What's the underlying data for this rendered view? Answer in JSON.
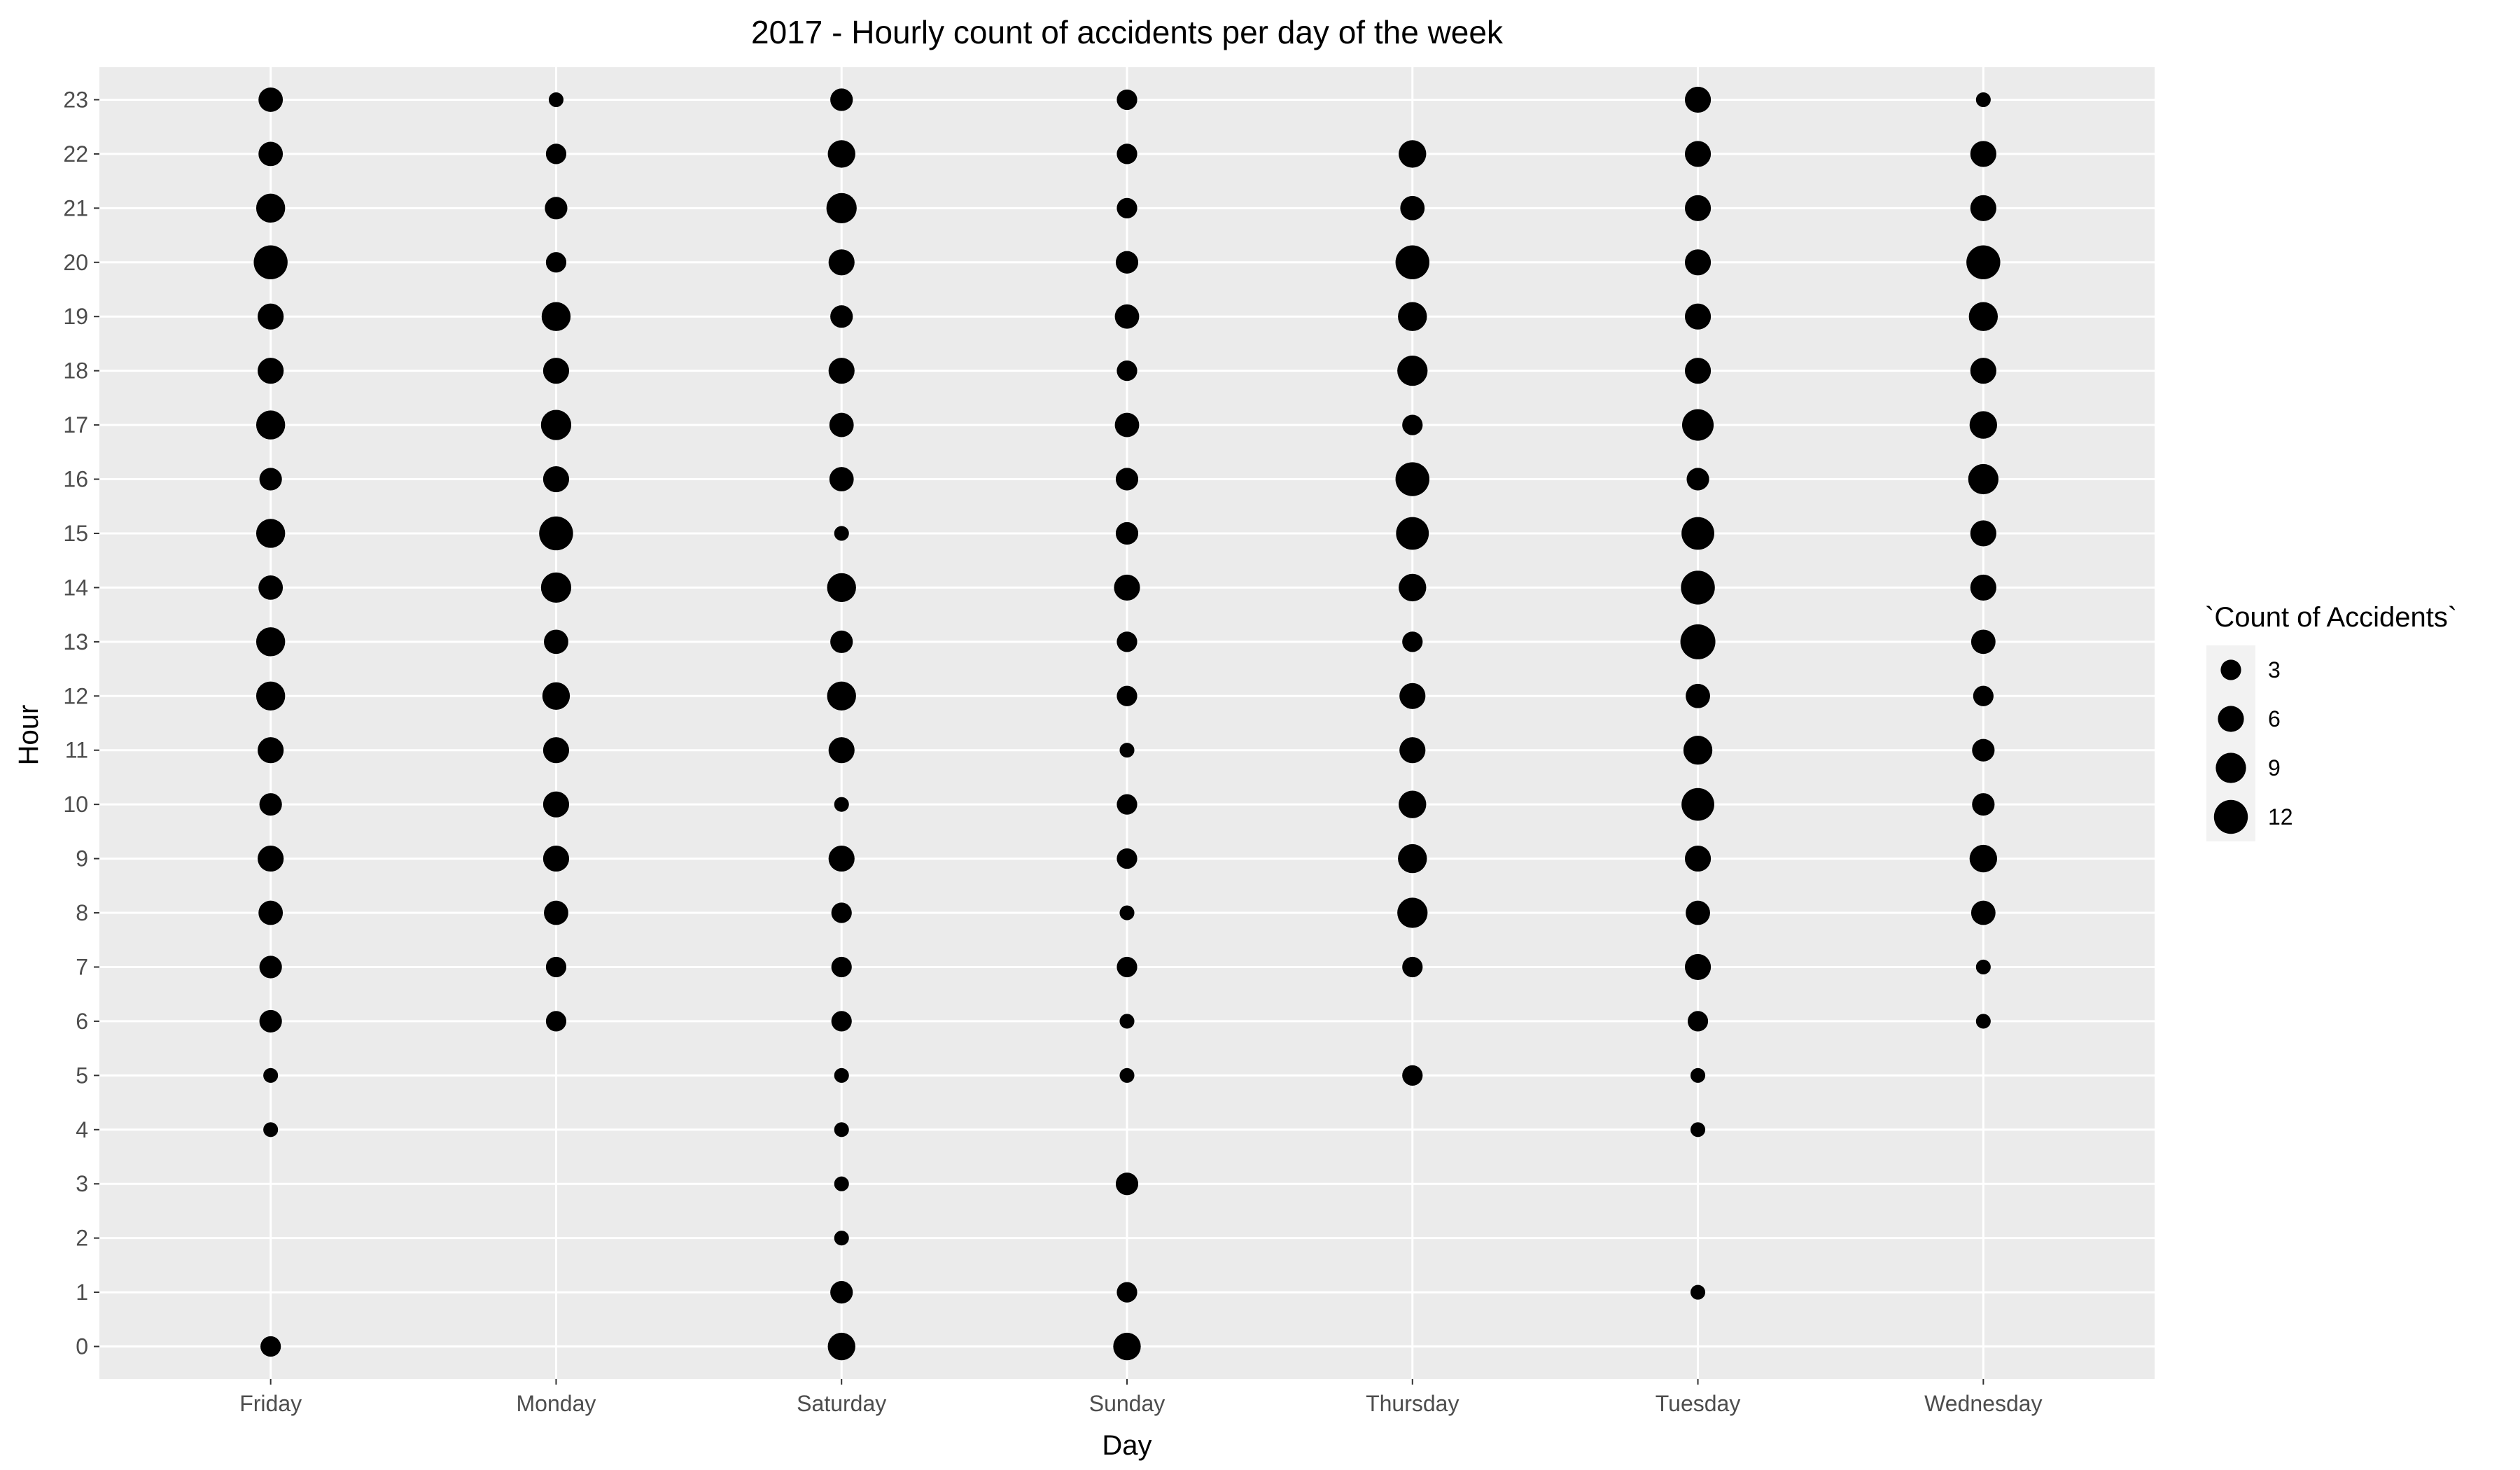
{
  "chart_data": {
    "type": "scatter",
    "title": "2017 - Hourly count of accidents per day of the week",
    "xlabel": "Day",
    "ylabel": "Hour",
    "categories": [
      "Friday",
      "Monday",
      "Saturday",
      "Sunday",
      "Thursday",
      "Tuesday",
      "Wednesday"
    ],
    "y_ticks": [
      0,
      1,
      2,
      3,
      4,
      5,
      6,
      7,
      8,
      9,
      10,
      11,
      12,
      13,
      14,
      15,
      16,
      17,
      18,
      19,
      20,
      21,
      22,
      23
    ],
    "ylim": [
      0,
      23
    ],
    "size_legend": {
      "title": "`Count of Accidents`",
      "values": [
        3,
        6,
        9,
        12
      ],
      "placement": "right"
    },
    "colors": {
      "panel": "#ebebeb",
      "grid": "#ffffff",
      "point": "#000000",
      "legend_key": "#f2f2f2"
    },
    "grid": true,
    "points": [
      {
        "day": "Friday",
        "hour": 0,
        "count": 3
      },
      {
        "day": "Friday",
        "hour": 4,
        "count": 1
      },
      {
        "day": "Friday",
        "hour": 5,
        "count": 1
      },
      {
        "day": "Friday",
        "hour": 6,
        "count": 4
      },
      {
        "day": "Friday",
        "hour": 7,
        "count": 4
      },
      {
        "day": "Friday",
        "hour": 8,
        "count": 5
      },
      {
        "day": "Friday",
        "hour": 9,
        "count": 6
      },
      {
        "day": "Friday",
        "hour": 10,
        "count": 4
      },
      {
        "day": "Friday",
        "hour": 11,
        "count": 6
      },
      {
        "day": "Friday",
        "hour": 12,
        "count": 8
      },
      {
        "day": "Friday",
        "hour": 13,
        "count": 8
      },
      {
        "day": "Friday",
        "hour": 14,
        "count": 5
      },
      {
        "day": "Friday",
        "hour": 15,
        "count": 8
      },
      {
        "day": "Friday",
        "hour": 16,
        "count": 4
      },
      {
        "day": "Friday",
        "hour": 17,
        "count": 8
      },
      {
        "day": "Friday",
        "hour": 18,
        "count": 6
      },
      {
        "day": "Friday",
        "hour": 19,
        "count": 6
      },
      {
        "day": "Friday",
        "hour": 20,
        "count": 12
      },
      {
        "day": "Friday",
        "hour": 21,
        "count": 8
      },
      {
        "day": "Friday",
        "hour": 22,
        "count": 5
      },
      {
        "day": "Friday",
        "hour": 23,
        "count": 5
      },
      {
        "day": "Monday",
        "hour": 6,
        "count": 3
      },
      {
        "day": "Monday",
        "hour": 7,
        "count": 3
      },
      {
        "day": "Monday",
        "hour": 8,
        "count": 5
      },
      {
        "day": "Monday",
        "hour": 9,
        "count": 6
      },
      {
        "day": "Monday",
        "hour": 10,
        "count": 6
      },
      {
        "day": "Monday",
        "hour": 11,
        "count": 6
      },
      {
        "day": "Monday",
        "hour": 12,
        "count": 7
      },
      {
        "day": "Monday",
        "hour": 13,
        "count": 5
      },
      {
        "day": "Monday",
        "hour": 14,
        "count": 9
      },
      {
        "day": "Monday",
        "hour": 15,
        "count": 12
      },
      {
        "day": "Monday",
        "hour": 16,
        "count": 6
      },
      {
        "day": "Monday",
        "hour": 17,
        "count": 9
      },
      {
        "day": "Monday",
        "hour": 18,
        "count": 6
      },
      {
        "day": "Monday",
        "hour": 19,
        "count": 8
      },
      {
        "day": "Monday",
        "hour": 20,
        "count": 3
      },
      {
        "day": "Monday",
        "hour": 21,
        "count": 4
      },
      {
        "day": "Monday",
        "hour": 22,
        "count": 3
      },
      {
        "day": "Monday",
        "hour": 23,
        "count": 1
      },
      {
        "day": "Saturday",
        "hour": 0,
        "count": 7
      },
      {
        "day": "Saturday",
        "hour": 1,
        "count": 4
      },
      {
        "day": "Saturday",
        "hour": 2,
        "count": 1
      },
      {
        "day": "Saturday",
        "hour": 3,
        "count": 1
      },
      {
        "day": "Saturday",
        "hour": 4,
        "count": 1
      },
      {
        "day": "Saturday",
        "hour": 5,
        "count": 1
      },
      {
        "day": "Saturday",
        "hour": 6,
        "count": 3
      },
      {
        "day": "Saturday",
        "hour": 7,
        "count": 3
      },
      {
        "day": "Saturday",
        "hour": 8,
        "count": 3
      },
      {
        "day": "Saturday",
        "hour": 9,
        "count": 6
      },
      {
        "day": "Saturday",
        "hour": 10,
        "count": 1
      },
      {
        "day": "Saturday",
        "hour": 11,
        "count": 6
      },
      {
        "day": "Saturday",
        "hour": 12,
        "count": 8
      },
      {
        "day": "Saturday",
        "hour": 13,
        "count": 4
      },
      {
        "day": "Saturday",
        "hour": 14,
        "count": 8
      },
      {
        "day": "Saturday",
        "hour": 15,
        "count": 1
      },
      {
        "day": "Saturday",
        "hour": 16,
        "count": 5
      },
      {
        "day": "Saturday",
        "hour": 17,
        "count": 5
      },
      {
        "day": "Saturday",
        "hour": 18,
        "count": 6
      },
      {
        "day": "Saturday",
        "hour": 19,
        "count": 4
      },
      {
        "day": "Saturday",
        "hour": 20,
        "count": 6
      },
      {
        "day": "Saturday",
        "hour": 21,
        "count": 9
      },
      {
        "day": "Saturday",
        "hour": 22,
        "count": 7
      },
      {
        "day": "Saturday",
        "hour": 23,
        "count": 4
      },
      {
        "day": "Sunday",
        "hour": 0,
        "count": 7
      },
      {
        "day": "Sunday",
        "hour": 1,
        "count": 3
      },
      {
        "day": "Sunday",
        "hour": 3,
        "count": 4
      },
      {
        "day": "Sunday",
        "hour": 5,
        "count": 1
      },
      {
        "day": "Sunday",
        "hour": 6,
        "count": 1
      },
      {
        "day": "Sunday",
        "hour": 7,
        "count": 3
      },
      {
        "day": "Sunday",
        "hour": 8,
        "count": 1
      },
      {
        "day": "Sunday",
        "hour": 9,
        "count": 3
      },
      {
        "day": "Sunday",
        "hour": 10,
        "count": 3
      },
      {
        "day": "Sunday",
        "hour": 11,
        "count": 1
      },
      {
        "day": "Sunday",
        "hour": 12,
        "count": 3
      },
      {
        "day": "Sunday",
        "hour": 13,
        "count": 3
      },
      {
        "day": "Sunday",
        "hour": 14,
        "count": 6
      },
      {
        "day": "Sunday",
        "hour": 15,
        "count": 4
      },
      {
        "day": "Sunday",
        "hour": 16,
        "count": 4
      },
      {
        "day": "Sunday",
        "hour": 17,
        "count": 5
      },
      {
        "day": "Sunday",
        "hour": 18,
        "count": 3
      },
      {
        "day": "Sunday",
        "hour": 19,
        "count": 5
      },
      {
        "day": "Sunday",
        "hour": 20,
        "count": 4
      },
      {
        "day": "Sunday",
        "hour": 21,
        "count": 3
      },
      {
        "day": "Sunday",
        "hour": 22,
        "count": 3
      },
      {
        "day": "Sunday",
        "hour": 23,
        "count": 3
      },
      {
        "day": "Thursday",
        "hour": 5,
        "count": 3
      },
      {
        "day": "Thursday",
        "hour": 7,
        "count": 3
      },
      {
        "day": "Thursday",
        "hour": 8,
        "count": 9
      },
      {
        "day": "Thursday",
        "hour": 9,
        "count": 8
      },
      {
        "day": "Thursday",
        "hour": 10,
        "count": 7
      },
      {
        "day": "Thursday",
        "hour": 11,
        "count": 6
      },
      {
        "day": "Thursday",
        "hour": 12,
        "count": 6
      },
      {
        "day": "Thursday",
        "hour": 13,
        "count": 3
      },
      {
        "day": "Thursday",
        "hour": 14,
        "count": 7
      },
      {
        "day": "Thursday",
        "hour": 15,
        "count": 11
      },
      {
        "day": "Thursday",
        "hour": 16,
        "count": 12
      },
      {
        "day": "Thursday",
        "hour": 17,
        "count": 3
      },
      {
        "day": "Thursday",
        "hour": 18,
        "count": 9
      },
      {
        "day": "Thursday",
        "hour": 19,
        "count": 8
      },
      {
        "day": "Thursday",
        "hour": 20,
        "count": 12
      },
      {
        "day": "Thursday",
        "hour": 21,
        "count": 5
      },
      {
        "day": "Thursday",
        "hour": 22,
        "count": 7
      },
      {
        "day": "Tuesday",
        "hour": 1,
        "count": 1
      },
      {
        "day": "Tuesday",
        "hour": 4,
        "count": 1
      },
      {
        "day": "Tuesday",
        "hour": 5,
        "count": 1
      },
      {
        "day": "Tuesday",
        "hour": 6,
        "count": 3
      },
      {
        "day": "Tuesday",
        "hour": 7,
        "count": 6
      },
      {
        "day": "Tuesday",
        "hour": 8,
        "count": 5
      },
      {
        "day": "Tuesday",
        "hour": 9,
        "count": 6
      },
      {
        "day": "Tuesday",
        "hour": 10,
        "count": 11
      },
      {
        "day": "Tuesday",
        "hour": 11,
        "count": 8
      },
      {
        "day": "Tuesday",
        "hour": 12,
        "count": 5
      },
      {
        "day": "Tuesday",
        "hour": 13,
        "count": 13
      },
      {
        "day": "Tuesday",
        "hour": 14,
        "count": 12
      },
      {
        "day": "Tuesday",
        "hour": 15,
        "count": 11
      },
      {
        "day": "Tuesday",
        "hour": 16,
        "count": 4
      },
      {
        "day": "Tuesday",
        "hour": 17,
        "count": 10
      },
      {
        "day": "Tuesday",
        "hour": 18,
        "count": 6
      },
      {
        "day": "Tuesday",
        "hour": 19,
        "count": 6
      },
      {
        "day": "Tuesday",
        "hour": 20,
        "count": 6
      },
      {
        "day": "Tuesday",
        "hour": 21,
        "count": 6
      },
      {
        "day": "Tuesday",
        "hour": 22,
        "count": 6
      },
      {
        "day": "Tuesday",
        "hour": 23,
        "count": 6
      },
      {
        "day": "Wednesday",
        "hour": 6,
        "count": 1
      },
      {
        "day": "Wednesday",
        "hour": 7,
        "count": 1
      },
      {
        "day": "Wednesday",
        "hour": 8,
        "count": 5
      },
      {
        "day": "Wednesday",
        "hour": 9,
        "count": 7
      },
      {
        "day": "Wednesday",
        "hour": 10,
        "count": 4
      },
      {
        "day": "Wednesday",
        "hour": 11,
        "count": 4
      },
      {
        "day": "Wednesday",
        "hour": 12,
        "count": 3
      },
      {
        "day": "Wednesday",
        "hour": 13,
        "count": 5
      },
      {
        "day": "Wednesday",
        "hour": 14,
        "count": 6
      },
      {
        "day": "Wednesday",
        "hour": 15,
        "count": 6
      },
      {
        "day": "Wednesday",
        "hour": 16,
        "count": 9
      },
      {
        "day": "Wednesday",
        "hour": 17,
        "count": 7
      },
      {
        "day": "Wednesday",
        "hour": 18,
        "count": 6
      },
      {
        "day": "Wednesday",
        "hour": 19,
        "count": 8
      },
      {
        "day": "Wednesday",
        "hour": 20,
        "count": 12
      },
      {
        "day": "Wednesday",
        "hour": 21,
        "count": 6
      },
      {
        "day": "Wednesday",
        "hour": 22,
        "count": 6
      },
      {
        "day": "Wednesday",
        "hour": 23,
        "count": 1
      }
    ]
  }
}
